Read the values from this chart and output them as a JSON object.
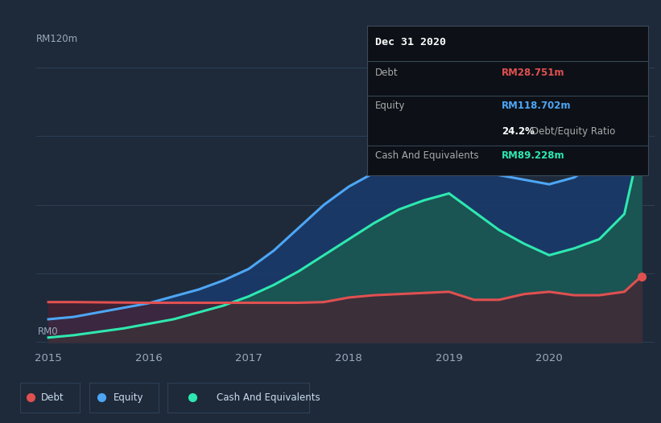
{
  "bg_color": "#1e2a3a",
  "plot_bg_color": "#1e2a3a",
  "grid_color": "#2e3f55",
  "ylabel_120": "RM120m",
  "ylabel_0": "RM0",
  "xlabel_ticks": [
    "2015",
    "2016",
    "2017",
    "2018",
    "2019",
    "2020"
  ],
  "debt_color": "#e05050",
  "equity_color": "#4da6f5",
  "cash_color": "#2ee8b0",
  "equity_fill_color": "#1a3a6a",
  "cash_fill_color": "#1a5a50",
  "debt_fill_color": "#4a2030",
  "tooltip": {
    "title": "Dec 31 2020",
    "rows": [
      {
        "label": "Debt",
        "value": "RM28.751m",
        "val_color": "#e05050",
        "separator_after": false
      },
      {
        "label": "Equity",
        "value": "RM118.702m",
        "val_color": "#4da6f5",
        "separator_after": false
      },
      {
        "label": "",
        "value": "24.2% Debt/Equity Ratio",
        "val_color": "#aaaaaa",
        "separator_after": true
      },
      {
        "label": "Cash And Equivalents",
        "value": "RM89.228m",
        "val_color": "#2ee8b0",
        "separator_after": false
      }
    ],
    "bg": "#0d1117",
    "border": "#3a4a5a",
    "text_color": "#aaaaaa",
    "title_color": "#ffffff",
    "ratio_bold": "24.2%",
    "ratio_rest": " Debt/Equity Ratio"
  },
  "x": [
    2015.0,
    2015.25,
    2015.5,
    2015.75,
    2016.0,
    2016.25,
    2016.5,
    2016.75,
    2017.0,
    2017.25,
    2017.5,
    2017.75,
    2018.0,
    2018.25,
    2018.5,
    2018.75,
    2019.0,
    2019.25,
    2019.5,
    2019.75,
    2020.0,
    2020.25,
    2020.5,
    2020.75,
    2020.92
  ],
  "equity": [
    10,
    11,
    13,
    15,
    17,
    20,
    23,
    27,
    32,
    40,
    50,
    60,
    68,
    74,
    77,
    78,
    78,
    76,
    73,
    71,
    69,
    72,
    79,
    98,
    118.7
  ],
  "debt": [
    17.5,
    17.5,
    17.4,
    17.3,
    17.2,
    17.2,
    17.2,
    17.2,
    17.2,
    17.2,
    17.2,
    17.5,
    19.5,
    20.5,
    21,
    21.5,
    22,
    18.5,
    18.5,
    21,
    22,
    20.5,
    20.5,
    22,
    28.75
  ],
  "cash": [
    2,
    3,
    4.5,
    6,
    8,
    10,
    13,
    16,
    20,
    25,
    31,
    38,
    45,
    52,
    58,
    62,
    65,
    57,
    49,
    43,
    38,
    41,
    45,
    56,
    89.2
  ],
  "legend": [
    {
      "label": "Debt",
      "color": "#e05050"
    },
    {
      "label": "Equity",
      "color": "#4da6f5"
    },
    {
      "label": "Cash And Equivalents",
      "color": "#2ee8b0"
    }
  ]
}
